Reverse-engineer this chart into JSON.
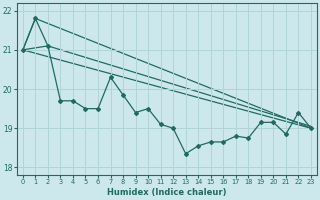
{
  "xlabel": "Humidex (Indice chaleur)",
  "ylabel": "",
  "xlim": [
    -0.5,
    23.5
  ],
  "ylim": [
    17.8,
    22.2
  ],
  "yticks": [
    18,
    19,
    20,
    21,
    22
  ],
  "xticks": [
    0,
    1,
    2,
    3,
    4,
    5,
    6,
    7,
    8,
    9,
    10,
    11,
    12,
    13,
    14,
    15,
    16,
    17,
    18,
    19,
    20,
    21,
    22,
    23
  ],
  "bg_color": "#cde8ec",
  "line_color": "#1e6b62",
  "grid_color": "#b0d4d8",
  "line1_x": [
    0,
    1,
    2,
    3,
    4,
    5,
    6,
    7,
    8,
    9,
    10,
    11,
    12,
    13,
    14,
    15,
    16,
    17,
    18,
    19,
    20,
    21,
    22,
    23
  ],
  "line1_y": [
    21.0,
    21.8,
    21.1,
    19.7,
    19.7,
    19.5,
    19.5,
    20.3,
    19.85,
    19.4,
    19.5,
    19.1,
    19.0,
    18.35,
    18.55,
    18.65,
    18.65,
    18.8,
    18.75,
    19.15,
    19.15,
    18.85,
    19.4,
    19.0
  ],
  "ref_line1_x": [
    0,
    23
  ],
  "ref_line1_y": [
    21.0,
    19.0
  ],
  "ref_line2_x": [
    0,
    1,
    23
  ],
  "ref_line2_y": [
    21.0,
    21.8,
    19.0
  ],
  "ref_line3_x": [
    0,
    2,
    23
  ],
  "ref_line3_y": [
    21.0,
    21.1,
    19.05
  ]
}
